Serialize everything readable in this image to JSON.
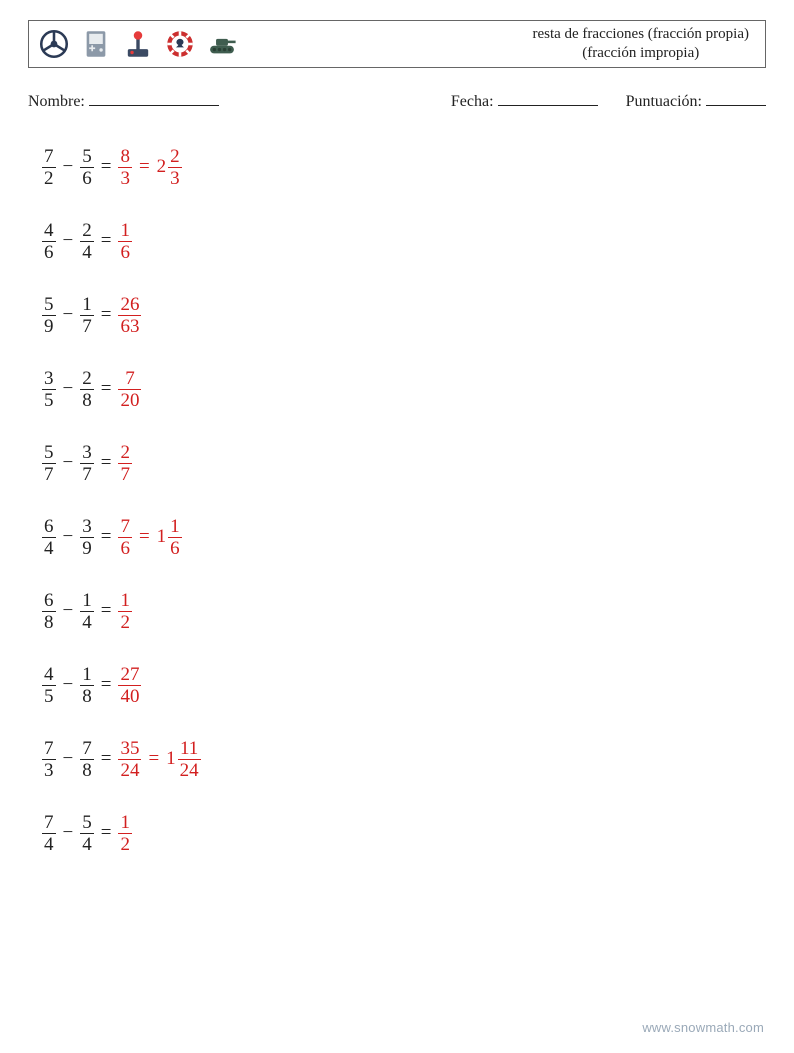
{
  "header": {
    "title_line1": "resta de fracciones (fracción propia)",
    "title_line2": "(fracción impropia)",
    "icon_names": [
      "steering-wheel-icon",
      "gameboy-icon",
      "joystick-icon",
      "poker-chip-icon",
      "tank-icon"
    ],
    "icon_colors": {
      "steering_outline": "#2b3a55",
      "steering_accent": "#2b3a55",
      "gameboy_body": "#8c99a8",
      "gameboy_screen": "#e8ecef",
      "joystick_base": "#3b4a63",
      "joystick_ball": "#e63b3b",
      "chip_outer": "#cc2f2f",
      "chip_inner": "#ffffff",
      "chip_suit": "#2b3a55",
      "tank_body": "#3f5d4f"
    }
  },
  "labels": {
    "name": "Nombre:",
    "date": "Fecha:",
    "score": "Puntuación:"
  },
  "underline_widths": {
    "name": 130,
    "date": 100,
    "score": 60
  },
  "style": {
    "answer_color": "#d21f1f",
    "text_color": "#222222",
    "font_size_problem": 19,
    "minus_glyph": "−",
    "equals_glyph": "="
  },
  "problems": [
    {
      "a": {
        "n": 7,
        "d": 2
      },
      "b": {
        "n": 5,
        "d": 6
      },
      "ans": {
        "n": 8,
        "d": 3
      },
      "mixed": {
        "w": 2,
        "n": 2,
        "d": 3
      }
    },
    {
      "a": {
        "n": 4,
        "d": 6
      },
      "b": {
        "n": 2,
        "d": 4
      },
      "ans": {
        "n": 1,
        "d": 6
      }
    },
    {
      "a": {
        "n": 5,
        "d": 9
      },
      "b": {
        "n": 1,
        "d": 7
      },
      "ans": {
        "n": 26,
        "d": 63
      }
    },
    {
      "a": {
        "n": 3,
        "d": 5
      },
      "b": {
        "n": 2,
        "d": 8
      },
      "ans": {
        "n": 7,
        "d": 20
      }
    },
    {
      "a": {
        "n": 5,
        "d": 7
      },
      "b": {
        "n": 3,
        "d": 7
      },
      "ans": {
        "n": 2,
        "d": 7
      }
    },
    {
      "a": {
        "n": 6,
        "d": 4
      },
      "b": {
        "n": 3,
        "d": 9
      },
      "ans": {
        "n": 7,
        "d": 6
      },
      "mixed": {
        "w": 1,
        "n": 1,
        "d": 6
      }
    },
    {
      "a": {
        "n": 6,
        "d": 8
      },
      "b": {
        "n": 1,
        "d": 4
      },
      "ans": {
        "n": 1,
        "d": 2
      }
    },
    {
      "a": {
        "n": 4,
        "d": 5
      },
      "b": {
        "n": 1,
        "d": 8
      },
      "ans": {
        "n": 27,
        "d": 40
      }
    },
    {
      "a": {
        "n": 7,
        "d": 3
      },
      "b": {
        "n": 7,
        "d": 8
      },
      "ans": {
        "n": 35,
        "d": 24
      },
      "mixed": {
        "w": 1,
        "n": 11,
        "d": 24
      }
    },
    {
      "a": {
        "n": 7,
        "d": 4
      },
      "b": {
        "n": 5,
        "d": 4
      },
      "ans": {
        "n": 1,
        "d": 2
      }
    }
  ],
  "footer": "www.snowmath.com"
}
